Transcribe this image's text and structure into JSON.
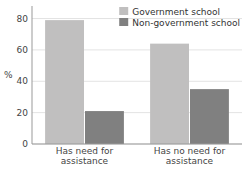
{
  "chart_data": {
    "type": "bar",
    "categories": [
      "Has need for\nassistance",
      "Has no need for\nassistance"
    ],
    "series": [
      {
        "name": "Government school",
        "color": "#c0bfbf",
        "values": [
          79,
          64
        ]
      },
      {
        "name": "Non-government school",
        "color": "#808080",
        "values": [
          21,
          35
        ]
      }
    ],
    "ylabel": "%",
    "ylim": [
      0,
      88
    ],
    "yticks": [
      0,
      20,
      40,
      60,
      80
    ],
    "grid": true,
    "legend": "upper right"
  }
}
